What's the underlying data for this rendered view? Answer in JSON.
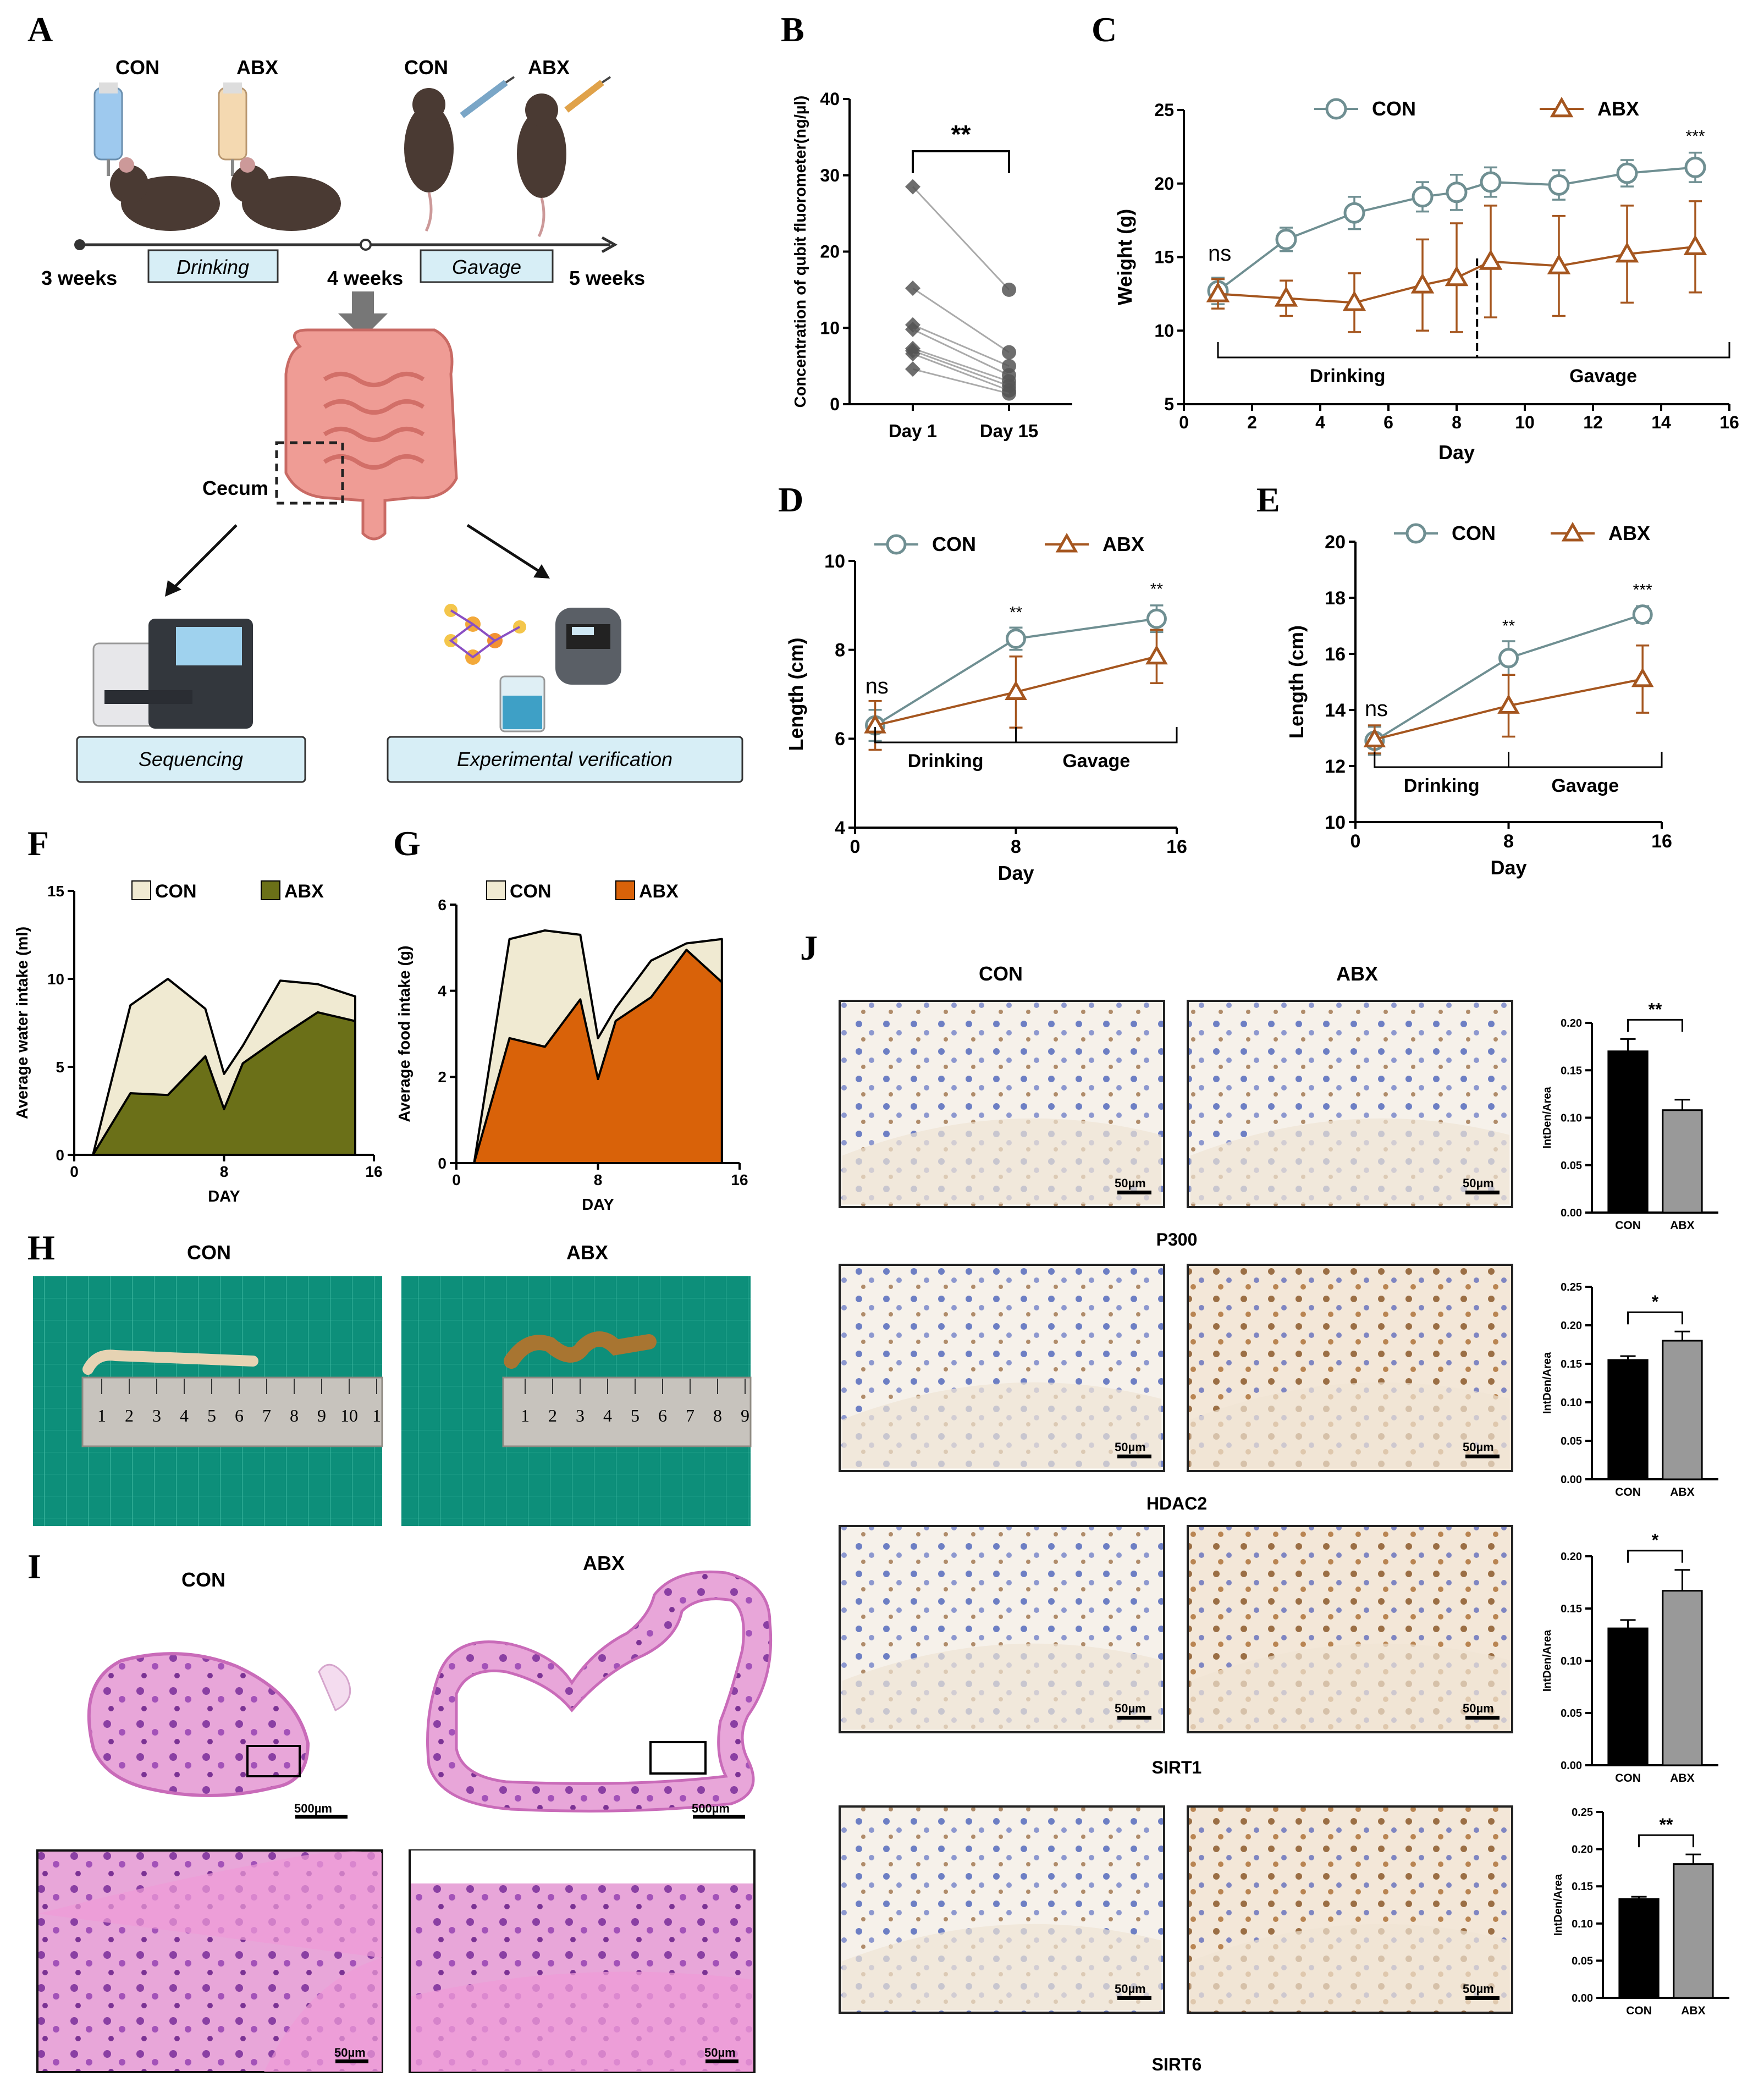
{
  "panels": {
    "A": "A",
    "B": "B",
    "C": "C",
    "D": "D",
    "E": "E",
    "F": "F",
    "G": "G",
    "H": "H",
    "I": "I",
    "J": "J"
  },
  "groups": {
    "con": "CON",
    "abx": "ABX"
  },
  "colors": {
    "con": "#6f8f92",
    "abx": "#a5561f",
    "water_con": "#f0ead2",
    "water_abx": "#6b7018",
    "food_con": "#f0ead2",
    "food_abx": "#d96209"
  },
  "panelA": {
    "labels": {
      "con1": "CON",
      "abx1": "ABX",
      "con2": "CON",
      "abx2": "ABX"
    },
    "timeline": {
      "w3": "3 weeks",
      "w4": "4 weeks",
      "w5": "5 weeks",
      "drinking": "Drinking",
      "gavage": "Gavage"
    },
    "cecum": "Cecum",
    "boxes": {
      "seq": "Sequencing",
      "exp": "Experimental verification"
    }
  },
  "chart_data": [
    {
      "id": "B",
      "type": "scatter",
      "ylabel": "Concentration of qubit fluorometer(ng/µl)",
      "ylim": [
        0,
        40
      ],
      "yticks": [
        "0",
        "10",
        "20",
        "30",
        "40"
      ],
      "categories": [
        "Day 1",
        "Day 15"
      ],
      "significance": "**",
      "pairs": [
        [
          28.5,
          15
        ],
        [
          15.2,
          6.8
        ],
        [
          10.4,
          5
        ],
        [
          9.8,
          3.8
        ],
        [
          7.3,
          3
        ],
        [
          7,
          2.4
        ],
        [
          6.6,
          1.8
        ],
        [
          4.6,
          1.4
        ]
      ]
    },
    {
      "id": "C",
      "type": "line",
      "xlabel": "Day",
      "ylabel": "Weight (g)",
      "xlim": [
        0,
        16
      ],
      "ylim": [
        5,
        25
      ],
      "xticks": [
        "0",
        "2",
        "4",
        "6",
        "8",
        "10",
        "12",
        "14",
        "16"
      ],
      "yticks": [
        "5",
        "10",
        "15",
        "20",
        "25"
      ],
      "series": [
        {
          "name": "CON",
          "x": [
            1,
            3,
            5,
            7,
            8,
            9,
            11,
            13,
            15
          ],
          "y": [
            12.7,
            16.2,
            18,
            19.1,
            19.4,
            20.1,
            19.9,
            20.7,
            21.1
          ],
          "err": [
            0.9,
            0.8,
            1.1,
            1,
            1.2,
            1,
            1,
            0.9,
            1
          ]
        },
        {
          "name": "ABX",
          "x": [
            1,
            3,
            5,
            7,
            8,
            9,
            11,
            13,
            15
          ],
          "y": [
            12.5,
            12.2,
            11.9,
            13.1,
            13.6,
            14.7,
            14.4,
            15.2,
            15.7
          ],
          "err": [
            1,
            1.2,
            2,
            3.1,
            3.7,
            3.8,
            3.4,
            3.3,
            3.1
          ]
        }
      ],
      "annotations": {
        "ns": "ns",
        "end": "***"
      },
      "phases": [
        "Drinking",
        "Gavage"
      ]
    },
    {
      "id": "D",
      "type": "line",
      "xlabel": "Day",
      "ylabel": "Length (cm)",
      "xlim": [
        0,
        16
      ],
      "ylim": [
        4,
        10
      ],
      "xticks": [
        "0",
        "8",
        "16"
      ],
      "yticks": [
        "4",
        "6",
        "8",
        "10"
      ],
      "series": [
        {
          "name": "CON",
          "x": [
            1,
            8,
            15
          ],
          "y": [
            6.3,
            8.25,
            8.7
          ],
          "err": [
            0.35,
            0.25,
            0.3
          ]
        },
        {
          "name": "ABX",
          "x": [
            1,
            8,
            15
          ],
          "y": [
            6.3,
            7.05,
            7.85
          ],
          "err": [
            0.55,
            0.8,
            0.6
          ]
        }
      ],
      "annotations": {
        "ns": "ns",
        "mid": "**",
        "end": "**"
      },
      "phases": [
        "Drinking",
        "Gavage"
      ]
    },
    {
      "id": "E",
      "type": "line",
      "xlabel": "Day",
      "ylabel": "Length (cm)",
      "xlim": [
        0,
        16
      ],
      "ylim": [
        10,
        20
      ],
      "xticks": [
        "0",
        "8",
        "16"
      ],
      "yticks": [
        "10",
        "12",
        "14",
        "16",
        "18",
        "20"
      ],
      "series": [
        {
          "name": "CON",
          "x": [
            1,
            8,
            15
          ],
          "y": [
            12.9,
            15.85,
            17.4
          ],
          "err": [
            0.5,
            0.6,
            0.3
          ]
        },
        {
          "name": "ABX",
          "x": [
            1,
            8,
            15
          ],
          "y": [
            12.95,
            14.15,
            15.1
          ],
          "err": [
            0.5,
            1.1,
            1.2
          ]
        }
      ],
      "annotations": {
        "ns": "ns",
        "mid": "**",
        "end": "***"
      },
      "phases": [
        "Drinking",
        "Gavage"
      ]
    },
    {
      "id": "F",
      "type": "area",
      "xlabel": "DAY",
      "ylabel": "Average water intake (ml)",
      "xlim": [
        0,
        16
      ],
      "ylim": [
        0,
        15
      ],
      "xticks": [
        "0",
        "8",
        "16"
      ],
      "yticks": [
        "0",
        "5",
        "10",
        "15"
      ],
      "series": [
        {
          "name": "CON",
          "x": [
            1,
            3,
            5,
            7,
            8,
            9,
            11,
            13,
            15
          ],
          "y": [
            0,
            8.5,
            10,
            8.3,
            4.6,
            6.2,
            9.9,
            9.7,
            9
          ]
        },
        {
          "name": "ABX",
          "x": [
            1,
            3,
            5,
            7,
            8,
            9,
            11,
            13,
            15
          ],
          "y": [
            0,
            3.5,
            3.4,
            5.6,
            2.6,
            5.2,
            6.7,
            8.1,
            7.6
          ]
        }
      ]
    },
    {
      "id": "G",
      "type": "area",
      "xlabel": "DAY",
      "ylabel": "Average food intake (g)",
      "xlim": [
        0,
        16
      ],
      "ylim": [
        0,
        6
      ],
      "xticks": [
        "0",
        "8",
        "16"
      ],
      "yticks": [
        "0",
        "2",
        "4",
        "6"
      ],
      "series": [
        {
          "name": "CON",
          "x": [
            1,
            3,
            5,
            7,
            8,
            9,
            11,
            13,
            15
          ],
          "y": [
            0,
            5.2,
            5.4,
            5.3,
            2.9,
            3.6,
            4.7,
            5.1,
            5.2
          ]
        },
        {
          "name": "ABX",
          "x": [
            1,
            3,
            5,
            7,
            8,
            9,
            11,
            13,
            15
          ],
          "y": [
            0,
            2.9,
            2.7,
            3.8,
            1.95,
            3.3,
            3.85,
            4.95,
            4.2
          ]
        }
      ]
    },
    {
      "id": "J1",
      "type": "bar",
      "ylabel": "IntDen/Area",
      "ylim": [
        0,
        0.2
      ],
      "yticks": [
        "0.00",
        "0.05",
        "0.10",
        "0.15",
        "0.20"
      ],
      "categories": [
        "CON",
        "ABX"
      ],
      "values": [
        0.17,
        0.108
      ],
      "err": [
        0.013,
        0.011
      ],
      "significance": "**"
    },
    {
      "id": "J2",
      "type": "bar",
      "ylabel": "IntDen/Area",
      "ylim": [
        0,
        0.25
      ],
      "yticks": [
        "0.00",
        "0.05",
        "0.10",
        "0.15",
        "0.20",
        "0.25"
      ],
      "categories": [
        "CON",
        "ABX"
      ],
      "values": [
        0.155,
        0.18
      ],
      "err": [
        0.005,
        0.012
      ],
      "significance": "*"
    },
    {
      "id": "J3",
      "type": "bar",
      "ylabel": "IntDen/Area",
      "ylim": [
        0,
        0.2
      ],
      "yticks": [
        "0.00",
        "0.05",
        "0.10",
        "0.15",
        "0.20"
      ],
      "categories": [
        "CON",
        "ABX"
      ],
      "values": [
        0.131,
        0.167
      ],
      "err": [
        0.008,
        0.02
      ],
      "significance": "*"
    },
    {
      "id": "J4",
      "type": "bar",
      "ylabel": "IntDen/Area",
      "ylim": [
        0,
        0.25
      ],
      "yticks": [
        "0.00",
        "0.05",
        "0.10",
        "0.15",
        "0.20",
        "0.25"
      ],
      "categories": [
        "CON",
        "ABX"
      ],
      "values": [
        0.133,
        0.18
      ],
      "err": [
        0.003,
        0.013
      ],
      "significance": "**"
    }
  ],
  "panelH": {
    "con": "CON",
    "abx": "ABX",
    "ruler_con": [
      "1",
      "2",
      "3",
      "4",
      "5",
      "6",
      "7",
      "8",
      "9",
      "10",
      "1"
    ],
    "ruler_abx": [
      "1",
      "2",
      "3",
      "4",
      "5",
      "6",
      "7",
      "8",
      "9"
    ]
  },
  "panelI": {
    "con": "CON",
    "abx": "ABX",
    "scale_large": "500µm",
    "scale_small": "50µm"
  },
  "panelJ": {
    "con": "CON",
    "abx": "ABX",
    "markers": [
      "P300",
      "HDAC2",
      "SIRT1",
      "SIRT6"
    ],
    "scale": "50µm"
  }
}
